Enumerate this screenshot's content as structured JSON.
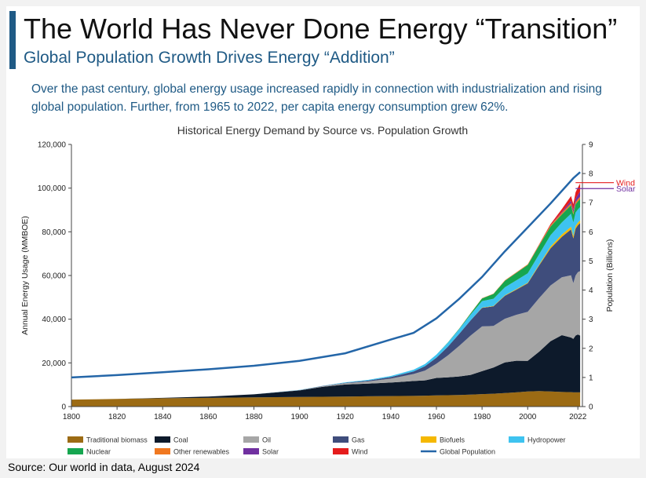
{
  "slide": {
    "title": "The World Has Never Done Energy “Transition”",
    "subtitle": "Global Population Growth Drives Energy “Addition”",
    "description": "Over the past century, global energy usage increased rapidly in connection with industrialization and rising global population. Further, from 1965 to 2022, per capita energy consumption grew 62%.",
    "source": "Source: Our world in data, August 2024"
  },
  "chart_data": {
    "type": "area",
    "title": "Historical Energy Demand by Source vs. Population Growth",
    "ylabel": "Annual Energy Usage (MMBOE)",
    "y2label": "Population (Billions)",
    "ylim": [
      0,
      120000
    ],
    "y2lim": [
      0,
      9
    ],
    "xlim": [
      1800,
      2024
    ],
    "x_ticks": [
      "1800",
      "1820",
      "1840",
      "1860",
      "1880",
      "1900",
      "1920",
      "1940",
      "1960",
      "1980",
      "2000",
      "2022"
    ],
    "y_ticks": [
      "0",
      "20,000",
      "40,000",
      "60,000",
      "80,000",
      "100,000",
      "120,000"
    ],
    "y2_ticks": [
      "0",
      "1",
      "2",
      "3",
      "4",
      "5",
      "6",
      "7",
      "8",
      "9"
    ],
    "x": [
      1800,
      1820,
      1840,
      1860,
      1880,
      1900,
      1910,
      1920,
      1930,
      1940,
      1950,
      1955,
      1960,
      1965,
      1970,
      1975,
      1980,
      1985,
      1990,
      1995,
      2000,
      2005,
      2010,
      2015,
      2019,
      2020,
      2021,
      2022,
      2023
    ],
    "series": [
      {
        "name": "Traditional biomass",
        "color": "#9c6b14",
        "values": [
          3200,
          3500,
          3800,
          4000,
          4200,
          4400,
          4500,
          4600,
          4700,
          4800,
          4900,
          5000,
          5100,
          5200,
          5300,
          5500,
          5700,
          5900,
          6200,
          6500,
          6900,
          7100,
          6900,
          6700,
          6600,
          6500,
          6500,
          6500,
          6500
        ]
      },
      {
        "name": "Coal",
        "color": "#0d1a2b",
        "values": [
          0,
          0,
          200,
          600,
          1400,
          3000,
          4500,
          5500,
          5800,
          6200,
          6800,
          7000,
          8000,
          8200,
          8500,
          9000,
          10500,
          12000,
          14000,
          14500,
          14000,
          18000,
          23000,
          26000,
          25000,
          24500,
          26000,
          26500,
          26000
        ]
      },
      {
        "name": "Oil",
        "color": "#a6a6a6",
        "values": [
          0,
          0,
          0,
          0,
          0,
          100,
          300,
          600,
          1000,
          1800,
          3200,
          4500,
          6500,
          10000,
          14000,
          18000,
          20500,
          19000,
          20000,
          21000,
          22500,
          24500,
          25500,
          26500,
          28500,
          25500,
          27500,
          28500,
          29500
        ]
      },
      {
        "name": "Gas",
        "color": "#3f4d7c",
        "values": [
          0,
          0,
          0,
          0,
          0,
          50,
          100,
          200,
          400,
          700,
          1200,
          2000,
          2800,
          4000,
          5500,
          7000,
          8500,
          9000,
          10500,
          11500,
          13000,
          15000,
          17000,
          18500,
          21000,
          20500,
          21500,
          21500,
          22000
        ]
      },
      {
        "name": "Biofuels",
        "color": "#f5b800",
        "values": [
          0,
          0,
          0,
          0,
          0,
          0,
          0,
          0,
          0,
          0,
          0,
          0,
          0,
          0,
          0,
          0,
          100,
          150,
          200,
          250,
          300,
          400,
          800,
          1100,
          1200,
          1100,
          1200,
          1200,
          1300
        ]
      },
      {
        "name": "Hydropower",
        "color": "#3ec3f0",
        "values": [
          0,
          0,
          0,
          0,
          0,
          50,
          100,
          200,
          300,
          500,
          800,
          1000,
          1400,
          1800,
          2200,
          2600,
          3000,
          3300,
          3700,
          4000,
          4300,
          4700,
          5200,
          5500,
          6000,
          6100,
          6100,
          6000,
          6000
        ]
      },
      {
        "name": "Nuclear",
        "color": "#16a650",
        "values": [
          0,
          0,
          0,
          0,
          0,
          0,
          0,
          0,
          0,
          0,
          0,
          0,
          0,
          100,
          200,
          600,
          1200,
          2200,
          3000,
          3400,
          3800,
          4000,
          4000,
          3700,
          3900,
          3700,
          3800,
          3700,
          3700
        ]
      },
      {
        "name": "Other renewables",
        "color": "#f07820",
        "values": [
          0,
          0,
          0,
          0,
          0,
          0,
          0,
          0,
          0,
          0,
          0,
          0,
          0,
          0,
          50,
          80,
          100,
          150,
          200,
          250,
          300,
          350,
          500,
          700,
          900,
          950,
          1000,
          1050,
          1100
        ]
      },
      {
        "name": "Solar",
        "color": "#7030a0",
        "values": [
          0,
          0,
          0,
          0,
          0,
          0,
          0,
          0,
          0,
          0,
          0,
          0,
          0,
          0,
          0,
          0,
          0,
          0,
          0,
          0,
          0,
          10,
          50,
          400,
          1100,
          1300,
          1600,
          2000,
          2400
        ]
      },
      {
        "name": "Wind",
        "color": "#e51c1c",
        "values": [
          0,
          0,
          0,
          0,
          0,
          0,
          0,
          0,
          0,
          0,
          0,
          0,
          0,
          0,
          0,
          0,
          0,
          0,
          10,
          20,
          50,
          150,
          550,
          1300,
          2200,
          2500,
          2900,
          3300,
          3600
        ]
      }
    ],
    "population": {
      "name": "Global Population",
      "color": "#2466a8",
      "x": [
        1800,
        1820,
        1840,
        1860,
        1880,
        1900,
        1920,
        1940,
        1950,
        1960,
        1970,
        1980,
        1990,
        2000,
        2010,
        2020,
        2023
      ],
      "values": [
        1.0,
        1.08,
        1.18,
        1.28,
        1.4,
        1.57,
        1.83,
        2.3,
        2.53,
        3.03,
        3.7,
        4.45,
        5.33,
        6.15,
        6.97,
        7.84,
        8.05
      ]
    },
    "annotations": [
      {
        "label": "Wind",
        "color": "#e51c1c",
        "value": 102500
      },
      {
        "label": "Solar",
        "color": "#7030a0",
        "value": 99800
      }
    ],
    "grid": false,
    "legend_position": "bottom"
  }
}
